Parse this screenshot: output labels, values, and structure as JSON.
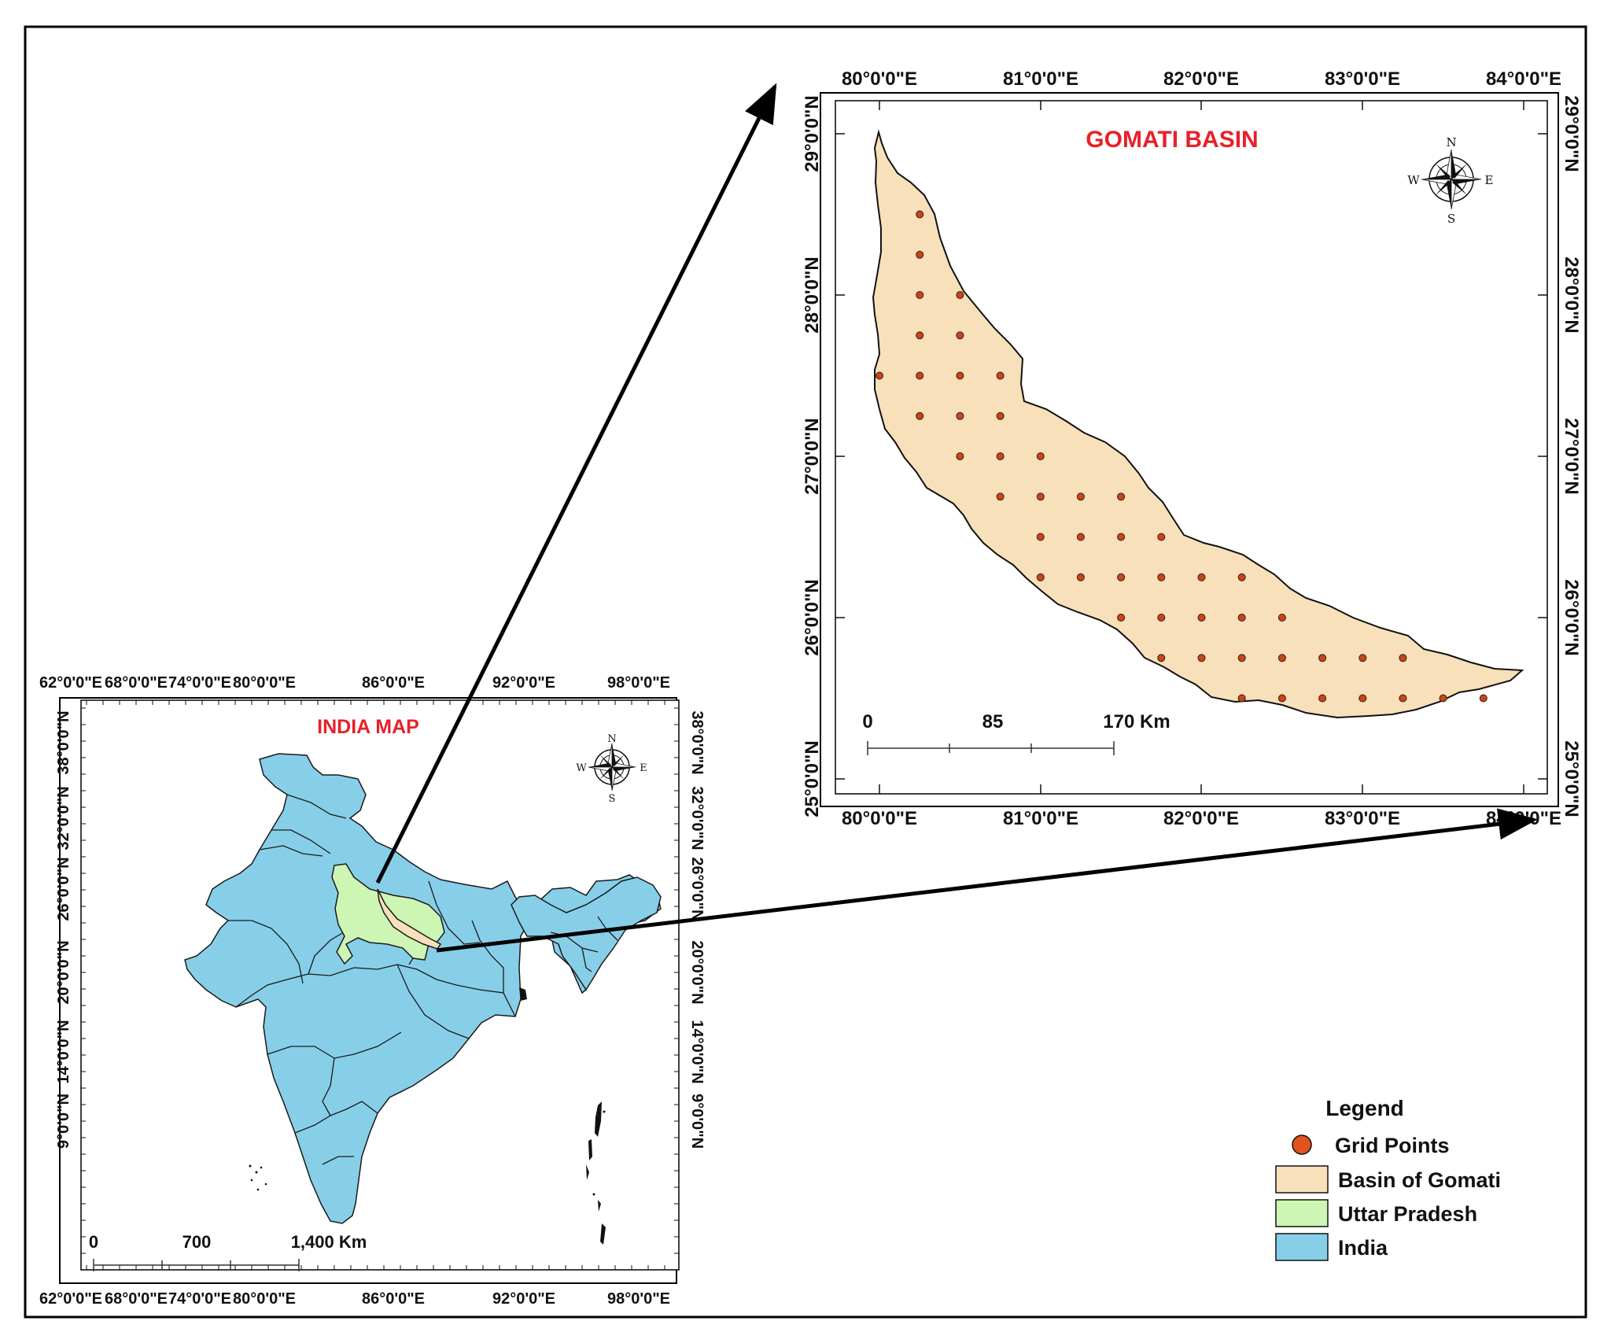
{
  "india_map": {
    "title": "INDIA MAP",
    "lon_labels": [
      "62°0'0\"E",
      "68°0'0\"E",
      "74°0'0\"E",
      "80°0'0\"E",
      "86°0'0\"E",
      "92°0'0\"E",
      "98°0'0\"E"
    ],
    "lat_labels": [
      "38°0'0\"N",
      "32°0'0\"N",
      "26°0'0\"N",
      "20°0'0\"N",
      "14°0'0\"N",
      "9°0'0\"N"
    ],
    "scale_labels": [
      "0",
      "700",
      "1,400 Km"
    ],
    "compass": {
      "n": "N",
      "s": "S",
      "e": "E",
      "w": "W"
    },
    "colors": {
      "india": "#87cfe9",
      "uttar_pradesh": "#cdf5b4",
      "basin": "#f7e0ba"
    }
  },
  "basin_map": {
    "title": "GOMATI BASIN",
    "lon_labels": [
      "80°0'0\"E",
      "81°0'0\"E",
      "82°0'0\"E",
      "83°0'0\"E",
      "84°0'0\"E"
    ],
    "lat_labels": [
      "29°0'0\"N",
      "28°0'0\"N",
      "27°0'0\"N",
      "26°0'0\"N",
      "25°0'0\"N"
    ],
    "scale_labels": [
      "0",
      "85",
      "170 Km"
    ],
    "compass": {
      "n": "N",
      "s": "S",
      "e": "E",
      "w": "W"
    },
    "colors": {
      "basin": "#f7e0ba",
      "grid_point": "#c8451c"
    },
    "grid_points": [
      {
        "lon": 80.25,
        "lat": 28.5
      },
      {
        "lon": 80.25,
        "lat": 28.25
      },
      {
        "lon": 80.25,
        "lat": 28.0
      },
      {
        "lon": 80.5,
        "lat": 28.0
      },
      {
        "lon": 80.25,
        "lat": 27.75
      },
      {
        "lon": 80.5,
        "lat": 27.75
      },
      {
        "lon": 80.0,
        "lat": 27.5
      },
      {
        "lon": 80.25,
        "lat": 27.5
      },
      {
        "lon": 80.5,
        "lat": 27.5
      },
      {
        "lon": 80.75,
        "lat": 27.5
      },
      {
        "lon": 80.25,
        "lat": 27.25
      },
      {
        "lon": 80.5,
        "lat": 27.25
      },
      {
        "lon": 80.75,
        "lat": 27.25
      },
      {
        "lon": 80.5,
        "lat": 27.0
      },
      {
        "lon": 80.75,
        "lat": 27.0
      },
      {
        "lon": 81.0,
        "lat": 27.0
      },
      {
        "lon": 80.75,
        "lat": 26.75
      },
      {
        "lon": 81.0,
        "lat": 26.75
      },
      {
        "lon": 81.25,
        "lat": 26.75
      },
      {
        "lon": 81.5,
        "lat": 26.75
      },
      {
        "lon": 81.0,
        "lat": 26.5
      },
      {
        "lon": 81.25,
        "lat": 26.5
      },
      {
        "lon": 81.5,
        "lat": 26.5
      },
      {
        "lon": 81.75,
        "lat": 26.5
      },
      {
        "lon": 81.0,
        "lat": 26.25
      },
      {
        "lon": 81.25,
        "lat": 26.25
      },
      {
        "lon": 81.5,
        "lat": 26.25
      },
      {
        "lon": 81.75,
        "lat": 26.25
      },
      {
        "lon": 82.0,
        "lat": 26.25
      },
      {
        "lon": 82.25,
        "lat": 26.25
      },
      {
        "lon": 81.5,
        "lat": 26.0
      },
      {
        "lon": 81.75,
        "lat": 26.0
      },
      {
        "lon": 82.0,
        "lat": 26.0
      },
      {
        "lon": 82.25,
        "lat": 26.0
      },
      {
        "lon": 82.5,
        "lat": 26.0
      },
      {
        "lon": 81.75,
        "lat": 25.75
      },
      {
        "lon": 82.0,
        "lat": 25.75
      },
      {
        "lon": 82.25,
        "lat": 25.75
      },
      {
        "lon": 82.5,
        "lat": 25.75
      },
      {
        "lon": 82.75,
        "lat": 25.75
      },
      {
        "lon": 83.0,
        "lat": 25.75
      },
      {
        "lon": 83.25,
        "lat": 25.75
      },
      {
        "lon": 82.25,
        "lat": 25.5
      },
      {
        "lon": 82.5,
        "lat": 25.5
      },
      {
        "lon": 82.75,
        "lat": 25.5
      },
      {
        "lon": 83.0,
        "lat": 25.5
      },
      {
        "lon": 83.25,
        "lat": 25.5
      },
      {
        "lon": 83.5,
        "lat": 25.5
      },
      {
        "lon": 83.75,
        "lat": 25.5
      }
    ]
  },
  "legend": {
    "title": "Legend",
    "items": [
      {
        "label": "Grid Points",
        "color": "#e2521d"
      },
      {
        "label": "Basin of Gomati",
        "color": "#f7e0ba"
      },
      {
        "label": "Uttar Pradesh",
        "color": "#cdf5b4"
      },
      {
        "label": "India",
        "color": "#87cfe9"
      }
    ]
  }
}
